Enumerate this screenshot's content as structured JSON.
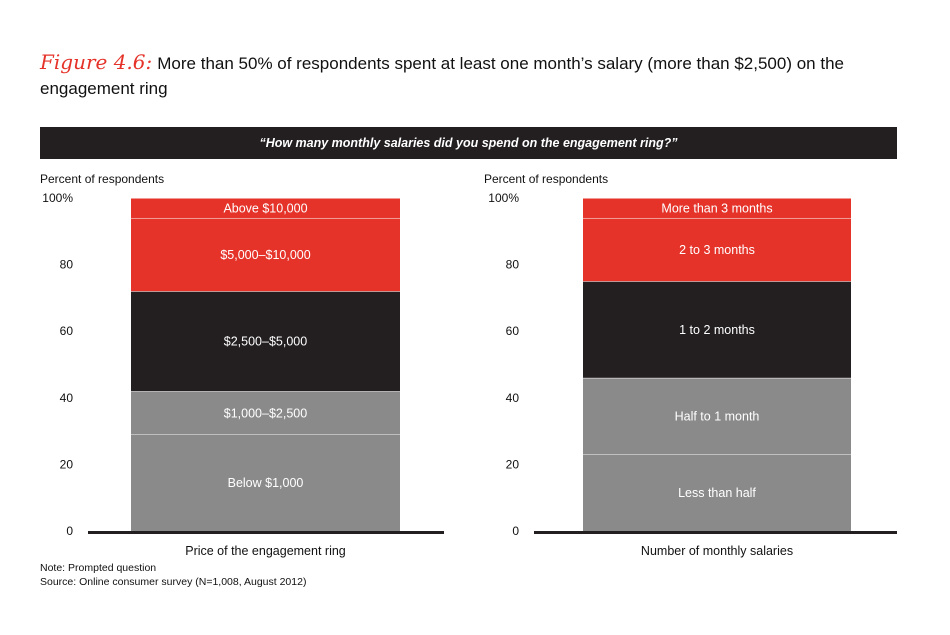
{
  "title": {
    "figure_label": "Figure 4.6:",
    "text": "More than 50% of respondents spent at least one month’s salary (more than $2,500) on the engagement ring"
  },
  "banner": "“How many monthly salaries did you spend on the engagement ring?”",
  "notes": {
    "note": "Note: Prompted question",
    "source": "Source: Online consumer survey (N=1,008, August 2012)"
  },
  "colors": {
    "red": "#e5332a",
    "black": "#231f20",
    "gray": "#8a8a8a",
    "axis": "#231f20",
    "label_text": "#ffffff"
  },
  "chart_data": [
    {
      "type": "bar",
      "stacked": true,
      "ylabel": "Percent of respondents",
      "xlabel": "Price of the engagement ring",
      "ylim": [
        0,
        100
      ],
      "y_ticks": [
        "0",
        "20",
        "40",
        "60",
        "80",
        "100%"
      ],
      "segments": [
        {
          "name": "Below $1,000",
          "value": 29,
          "color": "gray"
        },
        {
          "name": "$1,000–$2,500",
          "value": 13,
          "color": "gray"
        },
        {
          "name": "$2,500–$5,000",
          "value": 30,
          "color": "black"
        },
        {
          "name": "$5,000–$10,000",
          "value": 22,
          "color": "red"
        },
        {
          "name": "Above $10,000",
          "value": 6,
          "color": "red"
        }
      ]
    },
    {
      "type": "bar",
      "stacked": true,
      "ylabel": "Percent of respondents",
      "xlabel": "Number of monthly salaries",
      "ylim": [
        0,
        100
      ],
      "y_ticks": [
        "0",
        "20",
        "40",
        "60",
        "80",
        "100%"
      ],
      "segments": [
        {
          "name": "Less than half",
          "value": 23,
          "color": "gray"
        },
        {
          "name": "Half to 1 month",
          "value": 23,
          "color": "gray"
        },
        {
          "name": "1 to 2 months",
          "value": 29,
          "color": "black"
        },
        {
          "name": "2 to 3 months",
          "value": 19,
          "color": "red"
        },
        {
          "name": "More than 3 months",
          "value": 6,
          "color": "red"
        }
      ]
    }
  ]
}
